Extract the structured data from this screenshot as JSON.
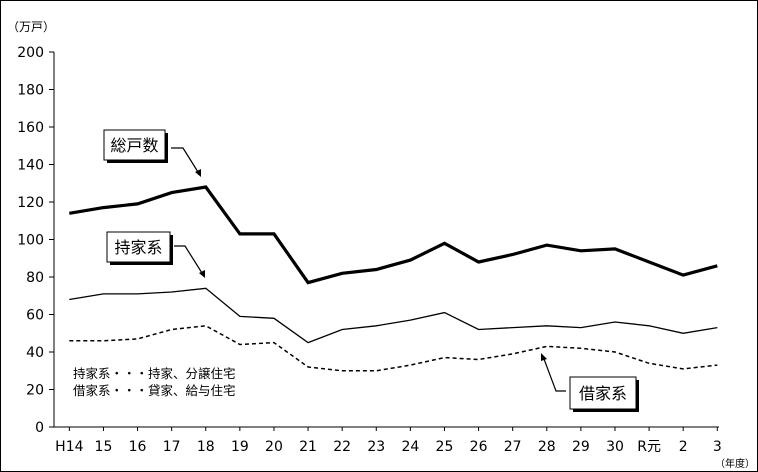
{
  "chart_data": {
    "type": "line",
    "unit_label": "（万戸）",
    "x_unit_label": "（年度）",
    "categories": [
      "H14",
      "15",
      "16",
      "17",
      "18",
      "19",
      "20",
      "21",
      "22",
      "23",
      "24",
      "25",
      "26",
      "27",
      "28",
      "29",
      "30",
      "R元",
      "2",
      "3"
    ],
    "ylim": [
      0,
      200
    ],
    "yticks": [
      0,
      20,
      40,
      60,
      80,
      100,
      120,
      140,
      160,
      180,
      200
    ],
    "grid": false,
    "series": [
      {
        "name": "総戸数",
        "style": "thick",
        "values": [
          114,
          117,
          119,
          125,
          128,
          103,
          103,
          77,
          82,
          84,
          89,
          98,
          88,
          92,
          97,
          94,
          95,
          88,
          81,
          86
        ]
      },
      {
        "name": "持家系",
        "style": "thin",
        "values": [
          68,
          71,
          71,
          72,
          74,
          59,
          58,
          45,
          52,
          54,
          57,
          61,
          52,
          53,
          54,
          53,
          56,
          54,
          50,
          53
        ]
      },
      {
        "name": "借家系",
        "style": "dashed",
        "values": [
          46,
          46,
          47,
          52,
          54,
          44,
          45,
          32,
          30,
          30,
          33,
          37,
          36,
          39,
          43,
          42,
          40,
          34,
          31,
          33
        ]
      }
    ],
    "notes": [
      "持家系・・・持家、分譲住宅",
      "借家系・・・貸家、給与住宅"
    ]
  }
}
